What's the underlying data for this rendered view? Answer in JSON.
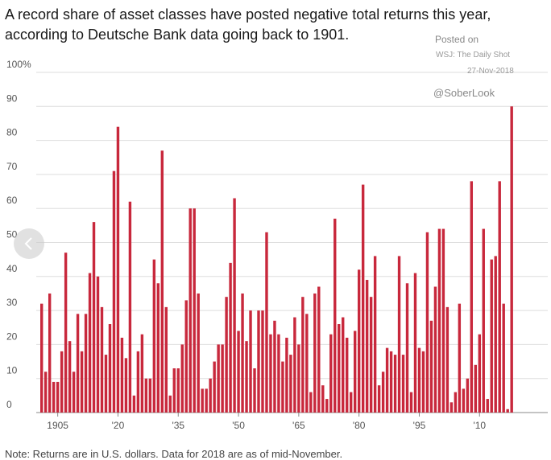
{
  "header": {
    "title_line1": "A record share of asset classes have posted negative total returns this year,",
    "title_line2": "according to Deutsche Bank data going back to 1901."
  },
  "watermark": {
    "posted": "Posted on",
    "source": "WSJ: The Daily Shot",
    "date": "27-Nov-2018",
    "handle": "@SoberLook"
  },
  "footer": {
    "note": "Note: Returns are in U.S. dollars. Data for 2018 are as of mid-November."
  },
  "nav": {
    "icon": "chevron-left-icon"
  },
  "chart_data": {
    "type": "bar",
    "title": "",
    "xlabel": "",
    "ylabel": "",
    "ylim": [
      0,
      100
    ],
    "y_ticks": [
      0,
      10,
      20,
      30,
      40,
      50,
      60,
      70,
      80,
      90,
      100
    ],
    "y_tick_labels": [
      "0",
      "10",
      "20",
      "30",
      "40",
      "50",
      "60",
      "70",
      "80",
      "90",
      "100%"
    ],
    "x_ticks": [
      1905,
      1920,
      1935,
      1950,
      1965,
      1980,
      1995,
      2010
    ],
    "x_tick_labels": [
      "1905",
      "'20",
      "'35",
      "'50",
      "'65",
      "'80",
      "'95",
      "'10"
    ],
    "grid": true,
    "bar_color": "#c8283c",
    "years": [
      1901,
      1902,
      1903,
      1904,
      1905,
      1906,
      1907,
      1908,
      1909,
      1910,
      1911,
      1912,
      1913,
      1914,
      1915,
      1916,
      1917,
      1918,
      1919,
      1920,
      1921,
      1922,
      1923,
      1924,
      1925,
      1926,
      1927,
      1928,
      1929,
      1930,
      1931,
      1932,
      1933,
      1934,
      1935,
      1936,
      1937,
      1938,
      1939,
      1940,
      1941,
      1942,
      1943,
      1944,
      1945,
      1946,
      1947,
      1948,
      1949,
      1950,
      1951,
      1952,
      1953,
      1954,
      1955,
      1956,
      1957,
      1958,
      1959,
      1960,
      1961,
      1962,
      1963,
      1964,
      1965,
      1966,
      1967,
      1968,
      1969,
      1970,
      1971,
      1972,
      1973,
      1974,
      1975,
      1976,
      1977,
      1978,
      1979,
      1980,
      1981,
      1982,
      1983,
      1984,
      1985,
      1986,
      1987,
      1988,
      1989,
      1990,
      1991,
      1992,
      1993,
      1994,
      1995,
      1996,
      1997,
      1998,
      1999,
      2000,
      2001,
      2002,
      2003,
      2004,
      2005,
      2006,
      2007,
      2008,
      2009,
      2010,
      2011,
      2012,
      2013,
      2014,
      2015,
      2016,
      2017,
      2018
    ],
    "values": [
      32,
      12,
      35,
      9,
      9,
      18,
      47,
      21,
      12,
      29,
      18,
      29,
      41,
      56,
      40,
      31,
      17,
      26,
      71,
      84,
      22,
      16,
      62,
      5,
      18,
      23,
      10,
      10,
      45,
      38,
      77,
      31,
      5,
      13,
      13,
      20,
      33,
      60,
      60,
      35,
      7,
      7,
      10,
      15,
      20,
      20,
      34,
      44,
      63,
      24,
      35,
      21,
      30,
      13,
      30,
      30,
      53,
      23,
      27,
      23,
      15,
      22,
      17,
      28,
      20,
      34,
      29,
      6,
      35,
      37,
      8,
      4,
      23,
      57,
      26,
      28,
      22,
      6,
      24,
      42,
      67,
      39,
      34,
      46,
      8,
      12,
      19,
      18,
      17,
      46,
      17,
      38,
      6,
      41,
      19,
      18,
      53,
      27,
      37,
      54,
      54,
      31,
      3,
      6,
      32,
      7,
      10,
      68,
      14,
      23,
      54,
      4,
      45,
      46,
      68,
      32,
      1,
      90
    ]
  }
}
